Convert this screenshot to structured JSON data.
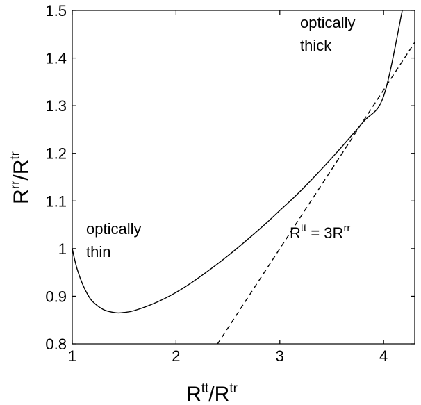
{
  "chart_data": {
    "type": "line",
    "title": "",
    "xlabel": {
      "base1": "R",
      "sup1": "tt",
      "mid": "/R",
      "sup2": "tr"
    },
    "ylabel": {
      "base1": "R",
      "sup1": "rr",
      "mid": "/R",
      "sup2": "tr"
    },
    "xlim": [
      1,
      4.3
    ],
    "ylim": [
      0.8,
      1.5
    ],
    "x_ticks": [
      1,
      2,
      3,
      4
    ],
    "x_tick_labels": [
      "1",
      "2",
      "3",
      "4"
    ],
    "y_ticks": [
      0.8,
      0.9,
      1.0,
      1.1,
      1.2,
      1.3,
      1.4,
      1.5
    ],
    "y_tick_labels": [
      "0.8",
      "0.9",
      "1",
      "1.1",
      "1.2",
      "1.3",
      "1.4",
      "1.5"
    ],
    "grid": false,
    "series": [
      {
        "style": "solid",
        "x": [
          1.0,
          1.02,
          1.05,
          1.1,
          1.15,
          1.2,
          1.3,
          1.4,
          1.45,
          1.5,
          1.6,
          1.8,
          2.0,
          2.2,
          2.5,
          2.8,
          3.0,
          3.2,
          3.5,
          3.8,
          4.0,
          4.18
        ],
        "y": [
          1.0,
          0.98,
          0.955,
          0.925,
          0.903,
          0.888,
          0.872,
          0.866,
          0.865,
          0.866,
          0.87,
          0.886,
          0.908,
          0.936,
          0.985,
          1.04,
          1.08,
          1.121,
          1.19,
          1.265,
          1.32,
          1.5
        ]
      },
      {
        "style": "dashed",
        "x": [
          2.4,
          4.3
        ],
        "y": [
          0.8,
          1.433
        ]
      }
    ],
    "annotations": [
      {
        "lines": [
          "optically",
          "thin"
        ]
      },
      {
        "lines": [
          "optically",
          "thick"
        ]
      },
      {
        "base1": "R",
        "sup1": "tt",
        "mid": " = 3R",
        "sup2": "rr"
      }
    ]
  }
}
